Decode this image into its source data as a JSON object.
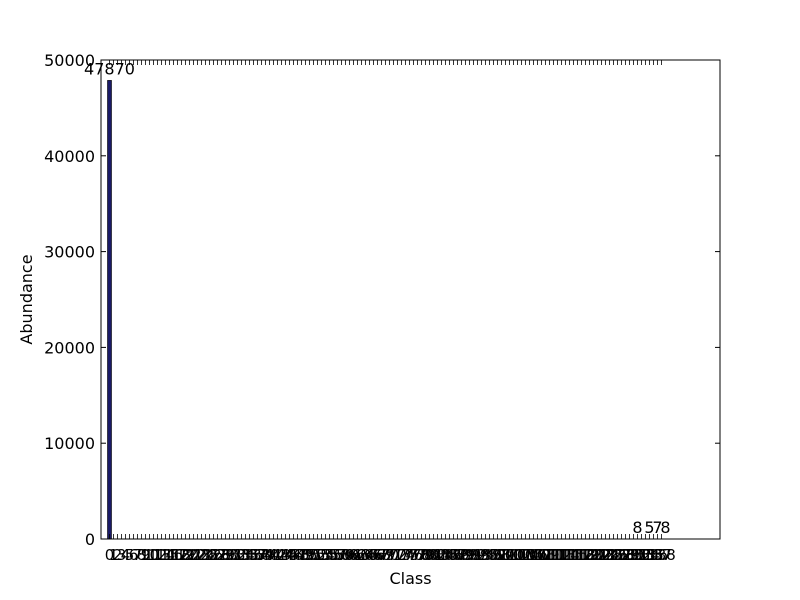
{
  "chart_data": {
    "type": "bar",
    "xlabel": "Class",
    "ylabel": "Abundance",
    "ylim": [
      0,
      50000
    ],
    "yticks": [
      0,
      10000,
      20000,
      30000,
      40000,
      50000
    ],
    "bar_color": "#1a1a66",
    "values": [
      47870,
      0,
      0,
      0,
      0,
      0,
      0,
      0,
      0,
      0,
      0,
      0,
      0,
      0,
      0,
      0,
      0,
      0,
      0,
      0,
      0,
      0,
      0,
      0,
      0,
      0,
      0,
      0,
      0,
      0,
      0,
      0,
      0,
      0,
      0,
      0,
      0,
      0,
      0,
      0,
      0,
      0,
      0,
      0,
      0,
      0,
      0,
      0,
      0,
      0,
      0,
      0,
      0,
      0,
      0,
      0,
      0,
      0,
      0,
      0,
      0,
      0,
      0,
      0,
      0,
      0,
      0,
      0,
      0,
      0,
      0,
      0,
      0,
      0,
      0,
      0,
      0,
      0,
      0,
      0,
      0,
      0,
      0,
      0,
      0,
      0,
      0,
      0,
      0,
      0,
      0,
      0,
      0,
      0,
      0,
      0,
      0,
      0,
      0,
      0,
      0,
      0,
      0,
      0,
      0,
      0,
      0,
      0,
      0,
      0,
      0,
      0,
      0,
      0,
      0,
      0,
      0,
      0,
      0,
      0,
      0,
      0,
      0,
      0,
      0,
      0,
      0,
      0,
      0,
      0,
      0,
      0,
      8,
      0,
      0,
      5,
      0,
      7,
      0,
      8,
      0
    ],
    "data_labels": [
      {
        "index": 0,
        "text": "47870"
      },
      {
        "index": 132,
        "text": "8"
      },
      {
        "index": 135,
        "text": "5"
      },
      {
        "index": 137,
        "text": "7"
      },
      {
        "index": 139,
        "text": "8"
      }
    ],
    "xtick_count": 141
  }
}
